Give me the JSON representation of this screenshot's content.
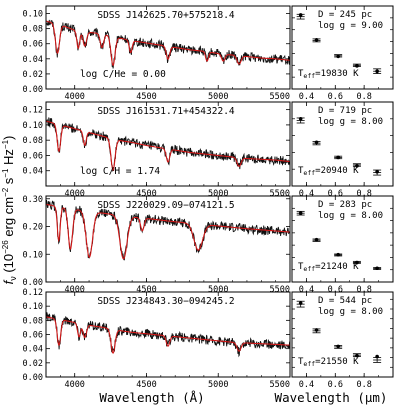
{
  "figure": {
    "y_axis_label": "f_ν (10⁻²⁶ erg cm⁻² s⁻¹ Hz⁻¹)",
    "y_axis_label_parts": {
      "prefix": "f",
      "sub": "ν",
      "main": " (10",
      "exp1": "−26",
      "rest": " erg cm",
      "exp2": "−2",
      "s": " s",
      "exp3": "−1",
      "hz": " Hz",
      "exp4": "−1",
      "close": ")"
    },
    "left_xlabel": "Wavelength (Å)",
    "right_xlabel": "Wavelength (μm)",
    "colors": {
      "spectrum": "#111111",
      "model": "#d01818",
      "axis": "#000000"
    }
  },
  "chart_data": [
    {
      "type": "line",
      "panel": "spectrum",
      "title": "SDSS J142625.70+575218.4",
      "annotation": "log C/He = 0.00",
      "xlim": [
        3800,
        5500
      ],
      "ylim": [
        0,
        0.11
      ],
      "xticks": [
        4000,
        4500,
        5000,
        5500
      ],
      "yticks": [
        0.0,
        0.02,
        0.04,
        0.06,
        0.08,
        0.1
      ],
      "ytick_labels": [
        "0.00",
        "0.02",
        "0.04",
        "0.06",
        "0.08",
        "0.10"
      ],
      "features": [
        [
          3880,
          0.45,
          0.01,
          14
        ],
        [
          4025,
          0.3,
          0.008,
          10
        ],
        [
          4070,
          0.25,
          0.01,
          12
        ],
        [
          4190,
          0.25,
          0.01,
          12
        ],
        [
          4267,
          0.55,
          0.015,
          14
        ],
        [
          4390,
          0.25,
          0.008,
          10
        ],
        [
          4650,
          0.3,
          0.008,
          12
        ],
        [
          4922,
          0.25,
          0.005,
          10
        ],
        [
          5035,
          0.2,
          0.008,
          12
        ],
        [
          5145,
          0.25,
          0.008,
          14
        ]
      ],
      "series": [
        {
          "name": "",
          "x": [
            3800,
            3900,
            4000,
            4100,
            4200,
            4300,
            4400,
            4500,
            4600,
            4700,
            4800,
            4900,
            5000,
            5100,
            5200,
            5300,
            5400,
            5500
          ],
          "y": [
            0.09,
            0.085,
            0.078,
            0.075,
            0.073,
            0.068,
            0.064,
            0.061,
            0.058,
            0.055,
            0.052,
            0.05,
            0.047,
            0.045,
            0.043,
            0.041,
            0.04,
            0.038
          ]
        }
      ]
    },
    {
      "type": "scatter",
      "panel": "photometry",
      "legend": [
        "D = 245 pc",
        "log g = 9.00",
        "Teff=19830 K"
      ],
      "teff": {
        "prefix": "T",
        "sub": "eff",
        "value": "=19830 K"
      },
      "xlim": [
        0.3,
        1.0
      ],
      "ylim": [
        0,
        0.14
      ],
      "xticks": [
        0.4,
        0.6,
        0.8,
        1.0
      ],
      "xtick_labels": [
        "0.4",
        "0.6",
        "0.8",
        "1.0"
      ],
      "yticks": [
        0.02,
        0.04,
        0.06,
        0.08,
        0.1,
        0.12
      ],
      "points": [
        {
          "x": 0.36,
          "y": 0.122,
          "err": 0.004
        },
        {
          "x": 0.47,
          "y": 0.082,
          "err": 0.0025
        },
        {
          "x": 0.62,
          "y": 0.056,
          "err": 0.002
        },
        {
          "x": 0.75,
          "y": 0.04,
          "err": 0.002
        },
        {
          "x": 0.89,
          "y": 0.03,
          "err": 0.004
        }
      ],
      "model": [
        {
          "x": 0.36,
          "y": 0.125
        },
        {
          "x": 0.47,
          "y": 0.083
        },
        {
          "x": 0.62,
          "y": 0.055
        },
        {
          "x": 0.75,
          "y": 0.039
        },
        {
          "x": 0.89,
          "y": 0.03
        }
      ]
    },
    {
      "type": "line",
      "panel": "spectrum",
      "title": "SDSS J161531.71+454322.4",
      "annotation": "log C/H = 1.74",
      "xlim": [
        3800,
        5500
      ],
      "ylim": [
        0.02,
        0.13
      ],
      "xticks": [
        4000,
        4500,
        5000,
        5500
      ],
      "yticks": [
        0.04,
        0.06,
        0.08,
        0.1,
        0.12
      ],
      "ytick_labels": [
        "0.04",
        "0.06",
        "0.08",
        "0.10",
        "0.12"
      ],
      "features": [
        [
          3890,
          0.35,
          0.01,
          12
        ],
        [
          4070,
          0.2,
          0.008,
          10
        ],
        [
          4267,
          0.5,
          0.015,
          14
        ],
        [
          4650,
          0.25,
          0.008,
          12
        ],
        [
          5145,
          0.2,
          0.008,
          14
        ]
      ],
      "series": [
        {
          "name": "",
          "x": [
            3800,
            3900,
            4000,
            4100,
            4200,
            4300,
            4400,
            4500,
            4600,
            4700,
            4800,
            4900,
            5000,
            5100,
            5200,
            5300,
            5400,
            5500
          ],
          "y": [
            0.105,
            0.1,
            0.095,
            0.09,
            0.085,
            0.08,
            0.077,
            0.073,
            0.07,
            0.067,
            0.064,
            0.062,
            0.06,
            0.058,
            0.056,
            0.055,
            0.054,
            0.052
          ]
        }
      ]
    },
    {
      "type": "scatter",
      "panel": "photometry",
      "legend": [
        "D = 719 pc",
        "log g = 8.00",
        "Teff=20940 K"
      ],
      "teff": {
        "prefix": "T",
        "sub": "eff",
        "value": "=20940 K"
      },
      "xlim": [
        0.3,
        1.0
      ],
      "ylim": [
        0,
        0.1
      ],
      "xticks": [
        0.4,
        0.6,
        0.8,
        1.0
      ],
      "xtick_labels": [
        "0.4",
        "0.6",
        "0.8",
        "1.0"
      ],
      "yticks": [
        0.02,
        0.04,
        0.06,
        0.08
      ],
      "points": [
        {
          "x": 0.36,
          "y": 0.078,
          "err": 0.003
        },
        {
          "x": 0.47,
          "y": 0.051,
          "err": 0.002
        },
        {
          "x": 0.62,
          "y": 0.034,
          "err": 0.0015
        },
        {
          "x": 0.75,
          "y": 0.025,
          "err": 0.0015
        },
        {
          "x": 0.89,
          "y": 0.016,
          "err": 0.003
        }
      ],
      "model": [
        {
          "x": 0.36,
          "y": 0.08
        },
        {
          "x": 0.47,
          "y": 0.052
        },
        {
          "x": 0.62,
          "y": 0.034
        },
        {
          "x": 0.75,
          "y": 0.024
        },
        {
          "x": 0.89,
          "y": 0.017
        }
      ]
    },
    {
      "type": "line",
      "panel": "spectrum",
      "title": "SDSS J220029.09−074121.5",
      "annotation": "",
      "xlim": [
        3800,
        5500
      ],
      "ylim": [
        0,
        0.31
      ],
      "xticks": [
        4000,
        4500,
        5000,
        5500
      ],
      "yticks": [
        0.0,
        0.1,
        0.2,
        0.3
      ],
      "ytick_labels": [
        "0.00",
        "0.10",
        "0.20",
        "0.30"
      ],
      "features": [
        [
          3889,
          0.45,
          0.01,
          10
        ],
        [
          3970,
          0.55,
          0.015,
          15
        ],
        [
          4102,
          0.65,
          0.02,
          22
        ],
        [
          4340,
          0.65,
          0.02,
          25
        ],
        [
          4471,
          0.2,
          0.008,
          12
        ],
        [
          4861,
          0.45,
          0.02,
          30
        ]
      ],
      "series": [
        {
          "name": "",
          "x": [
            3800,
            3900,
            4000,
            4100,
            4200,
            4300,
            4400,
            4500,
            4600,
            4700,
            4800,
            4900,
            5000,
            5100,
            5200,
            5300,
            5400,
            5500
          ],
          "y": [
            0.28,
            0.27,
            0.262,
            0.255,
            0.248,
            0.241,
            0.235,
            0.229,
            0.223,
            0.217,
            0.212,
            0.207,
            0.202,
            0.197,
            0.192,
            0.188,
            0.184,
            0.18
          ]
        }
      ]
    },
    {
      "type": "scatter",
      "panel": "photometry",
      "legend": [
        "D = 283 pc",
        "log g = 8.00",
        "Teff=21240 K"
      ],
      "teff": {
        "prefix": "T",
        "sub": "eff",
        "value": "=21240 K"
      },
      "xlim": [
        0.3,
        1.0
      ],
      "ylim": [
        0,
        0.7
      ],
      "xticks": [
        0.4,
        0.6,
        0.8,
        1.0
      ],
      "xtick_labels": [
        "0.4",
        "0.6",
        "0.8",
        "1.0"
      ],
      "yticks": [
        0.1,
        0.2,
        0.3,
        0.4,
        0.5,
        0.6
      ],
      "points": [
        {
          "x": 0.36,
          "y": 0.56,
          "err": 0.015
        },
        {
          "x": 0.47,
          "y": 0.34,
          "err": 0.01
        },
        {
          "x": 0.62,
          "y": 0.22,
          "err": 0.008
        },
        {
          "x": 0.75,
          "y": 0.16,
          "err": 0.008
        },
        {
          "x": 0.89,
          "y": 0.11,
          "err": 0.008
        }
      ],
      "model": [
        {
          "x": 0.36,
          "y": 0.56
        },
        {
          "x": 0.47,
          "y": 0.345
        },
        {
          "x": 0.62,
          "y": 0.222
        },
        {
          "x": 0.75,
          "y": 0.158
        },
        {
          "x": 0.89,
          "y": 0.112
        }
      ]
    },
    {
      "type": "line",
      "panel": "spectrum",
      "title": "SDSS J234843.30−094245.2",
      "annotation": "",
      "xlim": [
        3800,
        5500
      ],
      "ylim": [
        0,
        0.12
      ],
      "xticks": [
        4000,
        4500,
        5000,
        5500
      ],
      "yticks": [
        0.0,
        0.02,
        0.04,
        0.06,
        0.08,
        0.1,
        0.12
      ],
      "ytick_labels": [
        "0.00",
        "0.02",
        "0.04",
        "0.06",
        "0.08",
        "0.10",
        "0.12"
      ],
      "features": [
        [
          3890,
          0.45,
          0.01,
          12
        ],
        [
          4030,
          0.25,
          0.008,
          10
        ],
        [
          4070,
          0.25,
          0.01,
          12
        ],
        [
          4267,
          0.5,
          0.015,
          14
        ],
        [
          4650,
          0.25,
          0.008,
          12
        ],
        [
          5145,
          0.25,
          0.008,
          14
        ]
      ],
      "series": [
        {
          "name": "",
          "x": [
            3800,
            3900,
            4000,
            4100,
            4200,
            4300,
            4400,
            4500,
            4600,
            4700,
            4800,
            4900,
            5000,
            5100,
            5200,
            5300,
            5400,
            5500
          ],
          "y": [
            0.085,
            0.081,
            0.077,
            0.073,
            0.07,
            0.066,
            0.063,
            0.061,
            0.059,
            0.057,
            0.055,
            0.053,
            0.051,
            0.049,
            0.048,
            0.047,
            0.046,
            0.045
          ]
        }
      ]
    },
    {
      "type": "scatter",
      "panel": "photometry",
      "legend": [
        "D = 544 pc",
        "log g = 8.00",
        "Teff=21550 K"
      ],
      "teff": {
        "prefix": "T",
        "sub": "eff",
        "value": "=21550 K"
      },
      "xlim": [
        0.3,
        1.0
      ],
      "ylim": [
        0,
        0.175
      ],
      "xticks": [
        0.4,
        0.6,
        0.8,
        1.0
      ],
      "xtick_labels": [
        "0.4",
        "0.6",
        "0.8",
        "1.0"
      ],
      "yticks": [
        0.02,
        0.04,
        0.06,
        0.08,
        0.1,
        0.12,
        0.14,
        0.16
      ],
      "points": [
        {
          "x": 0.36,
          "y": 0.15,
          "err": 0.006
        },
        {
          "x": 0.47,
          "y": 0.095,
          "err": 0.004
        },
        {
          "x": 0.62,
          "y": 0.062,
          "err": 0.003
        },
        {
          "x": 0.75,
          "y": 0.045,
          "err": 0.003
        },
        {
          "x": 0.89,
          "y": 0.035,
          "err": 0.005
        }
      ],
      "model": [
        {
          "x": 0.36,
          "y": 0.152
        },
        {
          "x": 0.47,
          "y": 0.097
        },
        {
          "x": 0.62,
          "y": 0.063
        },
        {
          "x": 0.75,
          "y": 0.044
        },
        {
          "x": 0.89,
          "y": 0.042
        }
      ]
    }
  ]
}
